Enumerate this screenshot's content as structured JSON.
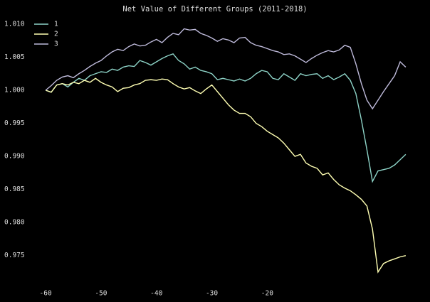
{
  "chart_data": {
    "type": "line",
    "title": "Net Value of Different Groups (2011-2018)",
    "x": [
      -60,
      -59,
      -58,
      -57,
      -56,
      -55,
      -54,
      -53,
      -52,
      -51,
      -50,
      -49,
      -48,
      -47,
      -46,
      -45,
      -44,
      -43,
      -42,
      -41,
      -40,
      -39,
      -38,
      -37,
      -36,
      -35,
      -34,
      -33,
      -32,
      -31,
      -30,
      -29,
      -28,
      -27,
      -26,
      -25,
      -24,
      -23,
      -22,
      -21,
      -20,
      -19,
      -18,
      -17,
      -16,
      -15,
      -14,
      -13,
      -12,
      -11,
      -10,
      -9,
      -8,
      -7,
      -6,
      -5,
      -4,
      -3,
      -2,
      -1,
      0,
      1,
      2,
      3,
      4,
      5
    ],
    "series": [
      {
        "name": "1",
        "color": "#8dd3c7",
        "values": [
          1.0,
          0.9997,
          1.0008,
          1.001,
          1.0005,
          1.0012,
          1.0018,
          1.0015,
          1.0022,
          1.0025,
          1.0028,
          1.0027,
          1.0032,
          1.003,
          1.0035,
          1.0037,
          1.0036,
          1.0045,
          1.0042,
          1.0038,
          1.0043,
          1.0048,
          1.0052,
          1.0055,
          1.0045,
          1.004,
          1.0032,
          1.0035,
          1.003,
          1.0028,
          1.0025,
          1.0016,
          1.0018,
          1.0016,
          1.0014,
          1.0017,
          1.0014,
          1.0018,
          1.0025,
          1.003,
          1.0028,
          1.0018,
          1.0016,
          1.0025,
          1.002,
          1.0015,
          1.0025,
          1.0022,
          1.0024,
          1.0025,
          1.0018,
          1.0022,
          1.0016,
          1.002,
          1.0025,
          1.0015,
          0.9995,
          0.9955,
          0.991,
          0.9862,
          0.9878,
          0.988,
          0.9882,
          0.9887,
          0.9895,
          0.9903
        ]
      },
      {
        "name": "2",
        "color": "#ffffb3",
        "values": [
          1.0,
          0.9997,
          1.0008,
          1.001,
          1.0008,
          1.0012,
          1.001,
          1.0015,
          1.0012,
          1.0018,
          1.0012,
          1.0008,
          1.0005,
          0.9998,
          1.0003,
          1.0004,
          1.0008,
          1.001,
          1.0015,
          1.0016,
          1.0015,
          1.0017,
          1.0016,
          1.001,
          1.0005,
          1.0002,
          1.0004,
          0.9999,
          0.9995,
          1.0002,
          1.0008,
          0.9998,
          0.9988,
          0.9978,
          0.997,
          0.9965,
          0.9965,
          0.996,
          0.995,
          0.9945,
          0.9938,
          0.9933,
          0.9928,
          0.992,
          0.991,
          0.99,
          0.9903,
          0.989,
          0.9885,
          0.9882,
          0.9872,
          0.9875,
          0.9865,
          0.9857,
          0.9852,
          0.9848,
          0.9842,
          0.9835,
          0.9825,
          0.979,
          0.9725,
          0.9738,
          0.9742,
          0.9745,
          0.9748,
          0.975
        ]
      },
      {
        "name": "3",
        "color": "#bebada",
        "values": [
          1.0,
          1.0007,
          1.0015,
          1.002,
          1.0022,
          1.0019,
          1.0025,
          1.003,
          1.0036,
          1.0041,
          1.0045,
          1.0052,
          1.0058,
          1.0062,
          1.006,
          1.0066,
          1.007,
          1.0067,
          1.0068,
          1.0073,
          1.0077,
          1.0072,
          1.008,
          1.0086,
          1.0084,
          1.0093,
          1.0091,
          1.0092,
          1.0086,
          1.0083,
          1.0079,
          1.0074,
          1.0078,
          1.0076,
          1.0072,
          1.0079,
          1.008,
          1.0072,
          1.0068,
          1.0066,
          1.0063,
          1.006,
          1.0058,
          1.0054,
          1.0055,
          1.0052,
          1.0047,
          1.0042,
          1.0048,
          1.0053,
          1.0057,
          1.006,
          1.0058,
          1.0061,
          1.0068,
          1.0065,
          1.004,
          1.001,
          0.9985,
          0.9972,
          0.9985,
          0.9998,
          1.001,
          1.0022,
          1.0043,
          1.0035
        ]
      }
    ],
    "xlim": [
      -64,
      9
    ],
    "xticks": [
      -60,
      -50,
      -40,
      -30,
      -20
    ],
    "ylim": [
      0.9712,
      1.0115
    ],
    "yticks": [
      0.975,
      {
        "value": 0.98,
        "label": "0.980"
      },
      0.985,
      {
        "value": 0.99,
        "label": "0.990"
      },
      0.995,
      {
        "value": 1.0,
        "label": "1.000"
      },
      {
        "value": 1.005,
        "label": "1.005"
      },
      {
        "value": 1.01,
        "label": "1.010"
      }
    ],
    "grid": false,
    "legend": "upper left"
  }
}
